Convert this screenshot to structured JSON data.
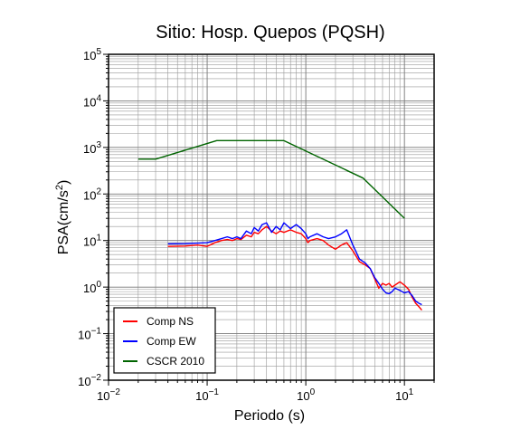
{
  "chart_data": {
    "type": "line",
    "title": "Sitio: Hosp. Quepos (PQSH)",
    "xlabel": "Periodo (s)",
    "ylabel_base": "PSA(cm/s",
    "ylabel_sup": "2",
    "ylabel_close": ")",
    "xscale": "log",
    "yscale": "log",
    "xlim": [
      0.01,
      20
    ],
    "ylim": [
      0.01,
      100000
    ],
    "grid": true,
    "legend_position": "bottom-left",
    "x_ticks": [
      {
        "base": "10",
        "exp": "−2",
        "value": 0.01
      },
      {
        "base": "10",
        "exp": "−1",
        "value": 0.1
      },
      {
        "base": "10",
        "exp": "0",
        "value": 1
      },
      {
        "base": "10",
        "exp": "1",
        "value": 10
      }
    ],
    "y_ticks": [
      {
        "base": "10",
        "exp": "−2",
        "value": 0.01
      },
      {
        "base": "10",
        "exp": "−1",
        "value": 0.1
      },
      {
        "base": "10",
        "exp": "0",
        "value": 1
      },
      {
        "base": "10",
        "exp": "1",
        "value": 10
      },
      {
        "base": "10",
        "exp": "2",
        "value": 100
      },
      {
        "base": "10",
        "exp": "3",
        "value": 1000
      },
      {
        "base": "10",
        "exp": "4",
        "value": 10000
      },
      {
        "base": "10",
        "exp": "5",
        "value": 100000
      }
    ],
    "series": [
      {
        "name": "Comp NS",
        "color": "#ff0000",
        "points": [
          [
            0.04,
            7.5
          ],
          [
            0.06,
            7.6
          ],
          [
            0.08,
            8.0
          ],
          [
            0.1,
            7.5
          ],
          [
            0.12,
            9.0
          ],
          [
            0.14,
            10.0
          ],
          [
            0.16,
            10.5
          ],
          [
            0.18,
            10.0
          ],
          [
            0.2,
            11.0
          ],
          [
            0.22,
            10.5
          ],
          [
            0.25,
            13.0
          ],
          [
            0.28,
            12.0
          ],
          [
            0.3,
            15.0
          ],
          [
            0.33,
            14.0
          ],
          [
            0.36,
            17.0
          ],
          [
            0.4,
            20.0
          ],
          [
            0.45,
            16.0
          ],
          [
            0.5,
            14.0
          ],
          [
            0.55,
            16.0
          ],
          [
            0.6,
            15.0
          ],
          [
            0.7,
            17.0
          ],
          [
            0.8,
            15.0
          ],
          [
            0.9,
            14.0
          ],
          [
            1.0,
            11.0
          ],
          [
            1.05,
            9.0
          ],
          [
            1.1,
            10.0
          ],
          [
            1.3,
            11.0
          ],
          [
            1.5,
            10.0
          ],
          [
            1.7,
            8.0
          ],
          [
            2.0,
            6.5
          ],
          [
            2.3,
            8.0
          ],
          [
            2.6,
            9.0
          ],
          [
            3.0,
            6.0
          ],
          [
            3.5,
            3.5
          ],
          [
            4.0,
            3.0
          ],
          [
            4.5,
            2.5
          ],
          [
            5.0,
            1.5
          ],
          [
            5.5,
            0.95
          ],
          [
            6.0,
            1.2
          ],
          [
            6.5,
            1.1
          ],
          [
            7.0,
            1.2
          ],
          [
            7.5,
            1.0
          ],
          [
            8.0,
            1.1
          ],
          [
            9.0,
            1.3
          ],
          [
            10.0,
            1.1
          ],
          [
            11.0,
            0.9
          ],
          [
            12.0,
            0.6
          ],
          [
            13.0,
            0.45
          ],
          [
            14.0,
            0.38
          ],
          [
            15.0,
            0.32
          ]
        ]
      },
      {
        "name": "Comp EW",
        "color": "#0000ff",
        "points": [
          [
            0.04,
            8.5
          ],
          [
            0.06,
            8.6
          ],
          [
            0.08,
            8.8
          ],
          [
            0.1,
            9.0
          ],
          [
            0.12,
            10.0
          ],
          [
            0.14,
            11.0
          ],
          [
            0.16,
            12.0
          ],
          [
            0.18,
            11.0
          ],
          [
            0.2,
            12.0
          ],
          [
            0.22,
            11.0
          ],
          [
            0.25,
            16.0
          ],
          [
            0.28,
            14.0
          ],
          [
            0.3,
            19.0
          ],
          [
            0.33,
            16.0
          ],
          [
            0.36,
            22.0
          ],
          [
            0.4,
            24.0
          ],
          [
            0.45,
            15.0
          ],
          [
            0.5,
            20.0
          ],
          [
            0.55,
            17.0
          ],
          [
            0.6,
            24.0
          ],
          [
            0.7,
            18.0
          ],
          [
            0.8,
            22.0
          ],
          [
            0.9,
            18.0
          ],
          [
            1.0,
            14.0
          ],
          [
            1.05,
            11.0
          ],
          [
            1.1,
            12.0
          ],
          [
            1.3,
            14.0
          ],
          [
            1.5,
            12.0
          ],
          [
            1.7,
            11.0
          ],
          [
            2.0,
            12.0
          ],
          [
            2.3,
            14.0
          ],
          [
            2.6,
            17.0
          ],
          [
            3.0,
            8.0
          ],
          [
            3.5,
            4.0
          ],
          [
            4.0,
            3.3
          ],
          [
            4.5,
            2.5
          ],
          [
            5.0,
            1.6
          ],
          [
            5.5,
            1.2
          ],
          [
            6.0,
            0.9
          ],
          [
            6.5,
            0.75
          ],
          [
            7.0,
            0.72
          ],
          [
            7.5,
            0.8
          ],
          [
            8.0,
            0.95
          ],
          [
            9.0,
            0.85
          ],
          [
            10.0,
            0.75
          ],
          [
            11.0,
            0.8
          ],
          [
            12.0,
            0.65
          ],
          [
            13.0,
            0.5
          ],
          [
            14.0,
            0.45
          ],
          [
            15.0,
            0.42
          ]
        ]
      },
      {
        "name": "CSCR 2010",
        "color": "#006400",
        "points": [
          [
            0.02,
            560
          ],
          [
            0.03,
            560
          ],
          [
            0.125,
            1400
          ],
          [
            0.6,
            1400
          ],
          [
            3.8,
            220
          ],
          [
            10.0,
            30
          ]
        ]
      }
    ]
  }
}
